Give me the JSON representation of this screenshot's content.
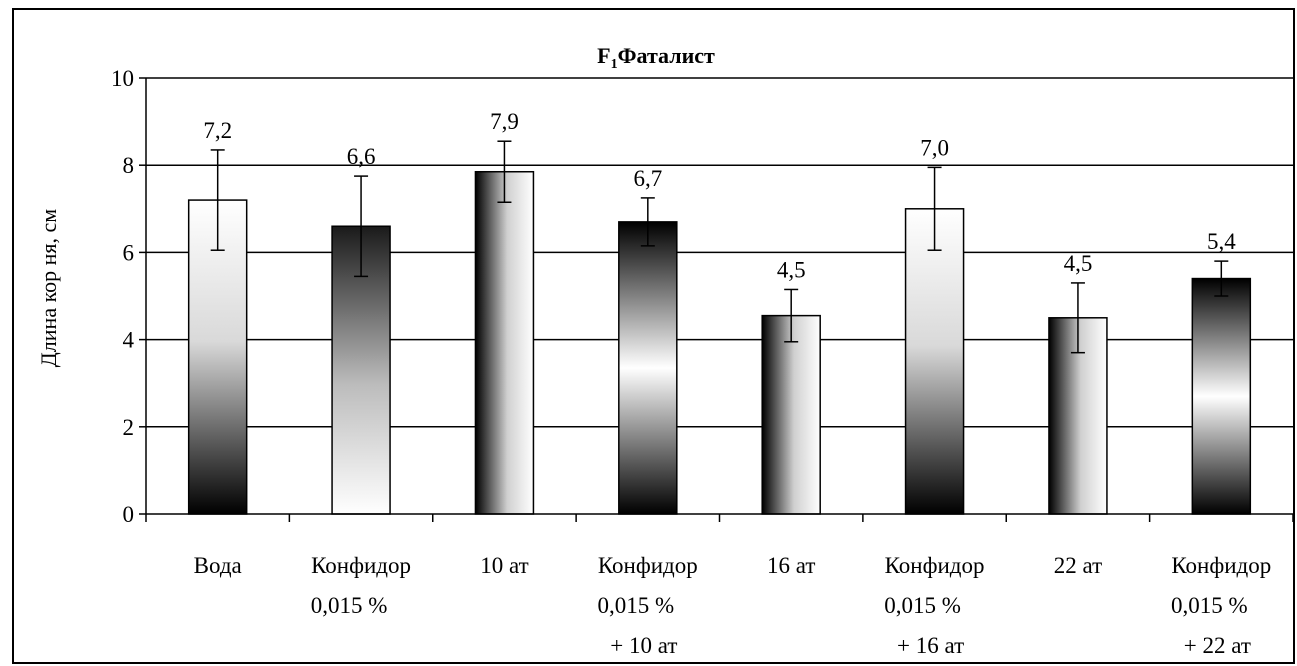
{
  "chart_data": {
    "type": "bar",
    "title_prefix": "F",
    "title_subscript": "1",
    "title_main": "Фаталист",
    "ylabel": "Длина кор ня, см",
    "xlabel": "",
    "ylim": [
      0,
      10
    ],
    "yticks": [
      0,
      2,
      4,
      6,
      8,
      10
    ],
    "grid": true,
    "categories": [
      [
        "Вода"
      ],
      [
        "Конфидор",
        "0,015 %"
      ],
      [
        "10 ат"
      ],
      [
        "Конфидор",
        "0,015 %",
        "+  10 ат"
      ],
      [
        "16 ат"
      ],
      [
        "Конфидор",
        "0,015 %",
        "+  16 ат"
      ],
      [
        "22 ат"
      ],
      [
        "Конфидор",
        "0,015 %",
        "+  22 ат"
      ]
    ],
    "values": [
      7.2,
      6.6,
      7.85,
      6.7,
      4.55,
      7.0,
      4.5,
      5.4
    ],
    "value_labels": [
      "7,2",
      "6,6",
      "7,9",
      "6,7",
      "4,5",
      "7,0",
      "4,5",
      "5,4"
    ],
    "error": [
      1.15,
      1.15,
      0.7,
      0.55,
      0.6,
      0.95,
      0.8,
      0.4
    ],
    "fill_style": [
      "light-top",
      "dark-top",
      "dark-left",
      "dark-ends",
      "dark-left",
      "light-top",
      "dark-left",
      "dark-ends"
    ]
  }
}
